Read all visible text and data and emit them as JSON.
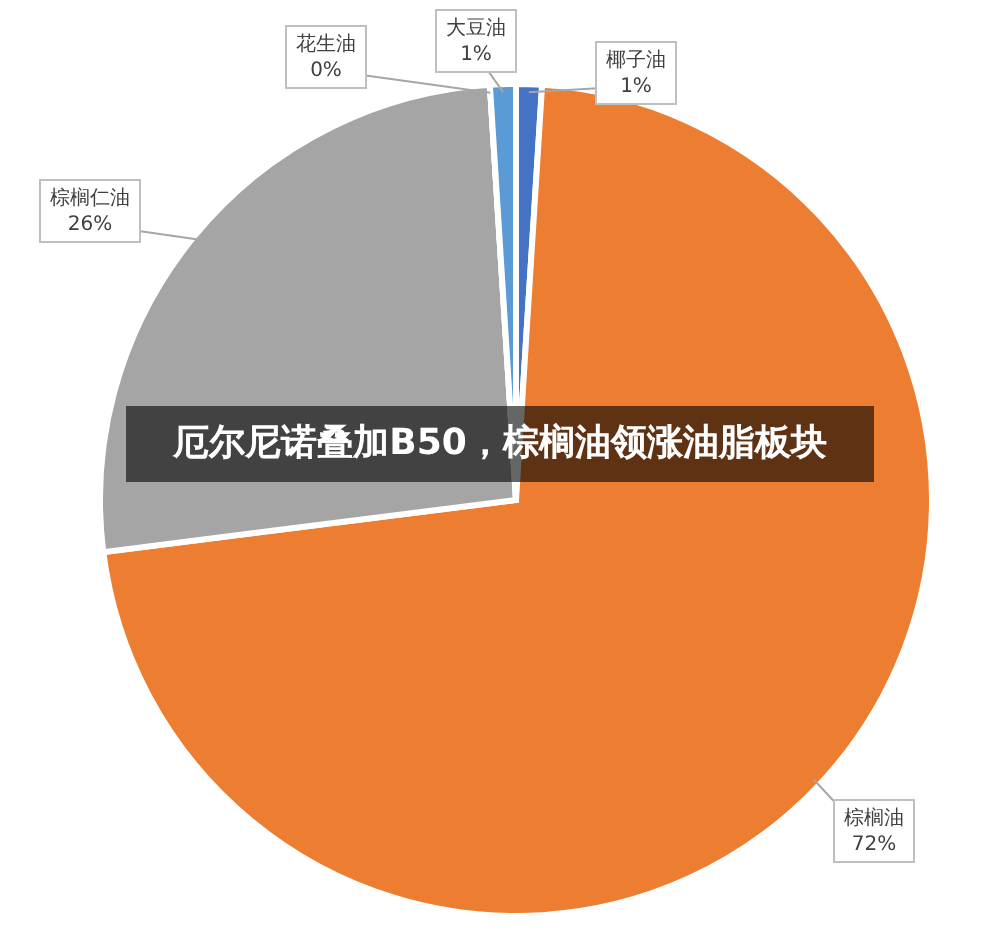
{
  "chart_data": {
    "type": "pie",
    "title": "厄尔尼诺叠加B50，棕榈油领涨油脂板块",
    "categories": [
      "椰子油",
      "棕榈油",
      "棕榈仁油",
      "花生油",
      "大豆油"
    ],
    "values": [
      1,
      72,
      26,
      0,
      1
    ],
    "colors": [
      "#4472c4",
      "#ed7d31",
      "#a5a5a5",
      "#ffc000",
      "#5b9bd5"
    ],
    "value_labels": [
      "1%",
      "72%",
      "26%",
      "0%",
      "1%"
    ]
  }
}
